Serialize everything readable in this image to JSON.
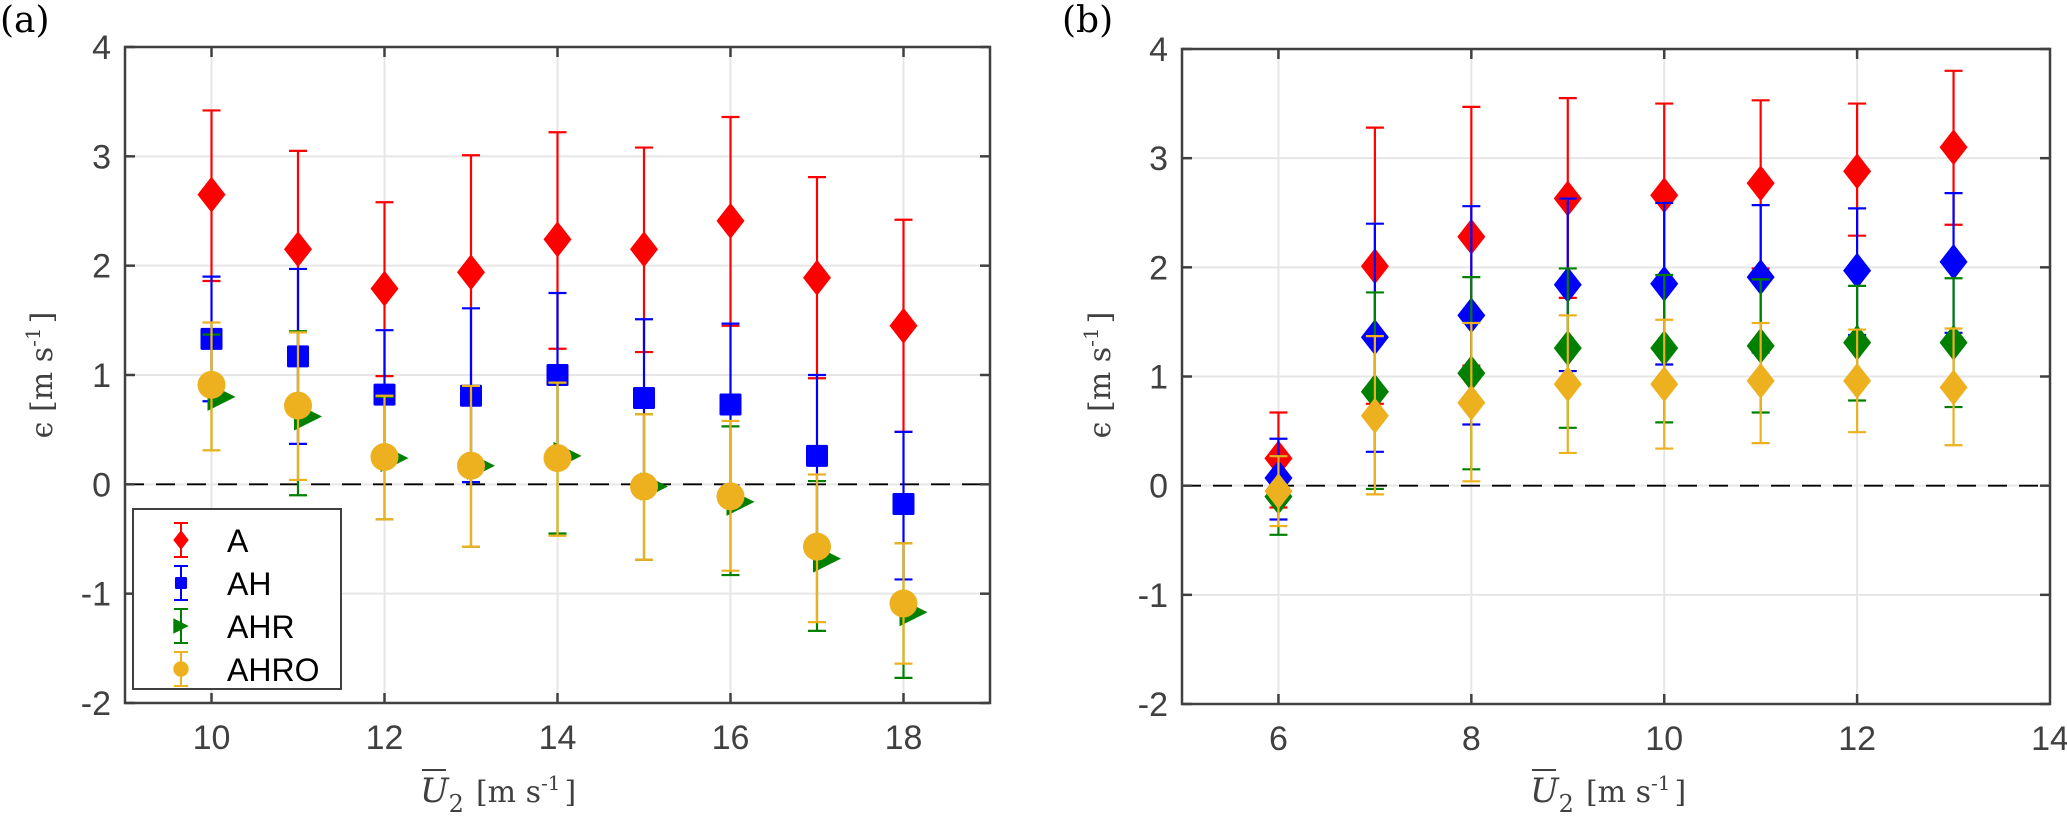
{
  "chart_data": [
    {
      "panel_label": "(a)",
      "type": "scatter",
      "subtype": "errorbar",
      "xlabel": {
        "symbol": "U",
        "subscript": "2",
        "units": "[m  s",
        "units_exp": "-1",
        "units_close": "]"
      },
      "ylabel": {
        "symbol": "ϵ",
        "units": "[m  s",
        "units_exp": "-1",
        "units_close": "]"
      },
      "xlim": [
        9,
        19
      ],
      "ylim": [
        -2,
        4
      ],
      "xticks": [
        10,
        12,
        14,
        16,
        18
      ],
      "yticks": [
        -2,
        -1,
        0,
        1,
        2,
        3,
        4
      ],
      "grid": true,
      "reference_line": {
        "y": 0,
        "style": "dashed"
      },
      "legend": {
        "placement": "bottom-left",
        "entries": [
          "A",
          "AH",
          "AHR",
          "AHRO"
        ]
      },
      "series": [
        {
          "name": "A",
          "color": "#ff0000",
          "marker": "diamond",
          "x": [
            10,
            11,
            12,
            13,
            14,
            15,
            16,
            17,
            18
          ],
          "y": [
            2.65,
            2.15,
            1.79,
            1.94,
            2.24,
            2.15,
            2.41,
            1.89,
            1.45
          ],
          "y_upper": [
            3.42,
            3.05,
            2.58,
            3.01,
            3.22,
            3.08,
            3.36,
            2.81,
            2.42
          ],
          "y_lower": [
            1.86,
            1.25,
            0.99,
            0.87,
            1.24,
            1.21,
            1.45,
            0.97,
            0.48
          ]
        },
        {
          "name": "AH",
          "color": "#0000ff",
          "marker": "square",
          "x": [
            10,
            11,
            12,
            13,
            14,
            15,
            16,
            17,
            18
          ],
          "y": [
            1.33,
            1.17,
            0.82,
            0.81,
            1.0,
            0.79,
            0.73,
            0.26,
            -0.18
          ],
          "y_upper": [
            1.9,
            1.97,
            1.41,
            1.61,
            1.75,
            1.51,
            1.47,
            1.0,
            0.48
          ],
          "y_lower": [
            0.76,
            0.37,
            0.23,
            0.02,
            0.25,
            0.07,
            -0.01,
            -0.48,
            -0.87
          ]
        },
        {
          "name": "AHR",
          "color": "#008000",
          "marker": "triangle-right",
          "x": [
            10,
            11,
            12,
            13,
            14,
            15,
            16,
            17,
            18
          ],
          "y": [
            0.8,
            0.62,
            0.24,
            0.17,
            0.26,
            -0.02,
            -0.16,
            -0.68,
            -1.17
          ],
          "y_upper": [
            1.37,
            1.4,
            0.8,
            0.9,
            0.93,
            0.64,
            0.53,
            0.03,
            -0.54
          ],
          "y_lower": [
            0.31,
            -0.1,
            -0.32,
            -0.57,
            -0.45,
            -0.69,
            -0.83,
            -1.34,
            -1.77
          ]
        },
        {
          "name": "AHRO",
          "color": "#edb120",
          "marker": "circle",
          "x": [
            10,
            11,
            12,
            13,
            14,
            15,
            16,
            17,
            18
          ],
          "y": [
            0.91,
            0.72,
            0.25,
            0.17,
            0.24,
            -0.02,
            -0.11,
            -0.57,
            -1.09
          ],
          "y_upper": [
            1.48,
            1.39,
            0.81,
            0.9,
            0.93,
            0.64,
            0.58,
            0.09,
            -0.54
          ],
          "y_lower": [
            0.31,
            0.04,
            -0.32,
            -0.57,
            -0.47,
            -0.69,
            -0.79,
            -1.26,
            -1.64
          ]
        }
      ]
    },
    {
      "panel_label": "(b)",
      "type": "scatter",
      "subtype": "errorbar",
      "xlabel": {
        "symbol": "U",
        "subscript": "2",
        "units": "[m  s",
        "units_exp": "-1",
        "units_close": "]"
      },
      "ylabel": {
        "symbol": "ϵ",
        "units": "[m  s",
        "units_exp": "-1",
        "units_close": "]"
      },
      "xlim": [
        5,
        14
      ],
      "ylim": [
        -2,
        4
      ],
      "xticks": [
        6,
        8,
        10,
        12,
        14
      ],
      "yticks": [
        -2,
        -1,
        0,
        1,
        2,
        3,
        4
      ],
      "grid": true,
      "reference_line": {
        "y": 0,
        "style": "dashed"
      },
      "legend": null,
      "series": [
        {
          "name": "A",
          "color": "#ff0000",
          "marker": "diamond",
          "x": [
            6,
            7,
            8,
            9,
            10,
            11,
            12,
            13
          ],
          "y": [
            0.25,
            2.01,
            2.28,
            2.63,
            2.66,
            2.77,
            2.88,
            3.1
          ],
          "y_upper": [
            0.67,
            3.28,
            3.47,
            3.55,
            3.5,
            3.53,
            3.5,
            3.8
          ],
          "y_lower": [
            -0.2,
            0.75,
            1.1,
            1.72,
            1.8,
            1.99,
            2.29,
            2.39
          ]
        },
        {
          "name": "AH",
          "color": "#0000ff",
          "marker": "diamond",
          "x": [
            6,
            7,
            8,
            9,
            10,
            11,
            12,
            13
          ],
          "y": [
            0.07,
            1.36,
            1.56,
            1.84,
            1.85,
            1.91,
            1.97,
            2.05
          ],
          "y_upper": [
            0.43,
            2.4,
            2.56,
            2.63,
            2.59,
            2.57,
            2.54,
            2.68
          ],
          "y_lower": [
            -0.31,
            0.31,
            0.56,
            1.05,
            1.11,
            1.22,
            1.38,
            1.4
          ]
        },
        {
          "name": "AHR",
          "color": "#008000",
          "marker": "diamond",
          "x": [
            6,
            7,
            8,
            9,
            10,
            11,
            12,
            13
          ],
          "y": [
            -0.1,
            0.86,
            1.03,
            1.26,
            1.26,
            1.28,
            1.31,
            1.31
          ],
          "y_upper": [
            0.27,
            1.77,
            1.91,
            1.99,
            1.93,
            1.89,
            1.83,
            1.9
          ],
          "y_lower": [
            -0.45,
            -0.03,
            0.15,
            0.53,
            0.58,
            0.67,
            0.78,
            0.72
          ]
        },
        {
          "name": "AHRO",
          "color": "#edb120",
          "marker": "diamond",
          "x": [
            6,
            7,
            8,
            9,
            10,
            11,
            12,
            13
          ],
          "y": [
            -0.05,
            0.64,
            0.76,
            0.93,
            0.93,
            0.96,
            0.96,
            0.9
          ],
          "y_upper": [
            0.27,
            1.37,
            1.49,
            1.56,
            1.52,
            1.49,
            1.43,
            1.44
          ],
          "y_lower": [
            -0.37,
            -0.08,
            0.04,
            0.3,
            0.34,
            0.39,
            0.49,
            0.37
          ]
        }
      ]
    }
  ]
}
